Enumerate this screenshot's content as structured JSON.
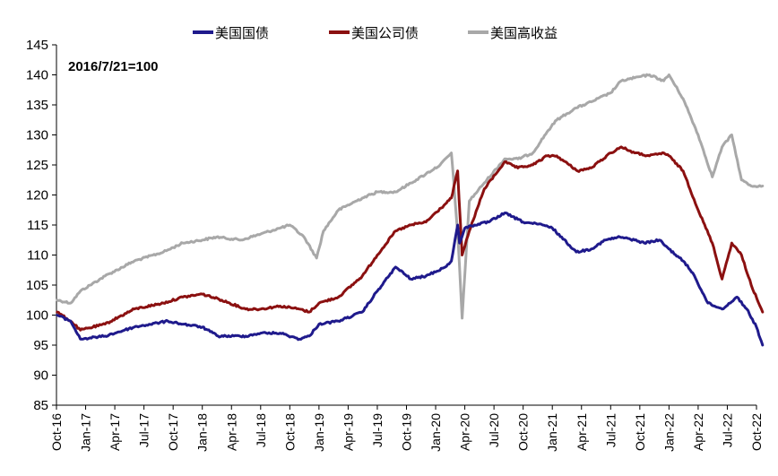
{
  "chart_data": {
    "type": "line",
    "title": "",
    "xlabel": "",
    "ylabel": "",
    "annotation": "2016/7/21=100",
    "ylim": [
      85,
      145
    ],
    "yticks": [
      85,
      90,
      95,
      100,
      105,
      110,
      115,
      120,
      125,
      130,
      135,
      140,
      145
    ],
    "xlim": [
      "2016-10",
      "2022-10"
    ],
    "x_tick_labels": [
      "Oct-16",
      "Jan-17",
      "Apr-17",
      "Jul-17",
      "Oct-17",
      "Jan-18",
      "Apr-18",
      "Jul-18",
      "Oct-18",
      "Jan-19",
      "Apr-19",
      "Jul-19",
      "Oct-19",
      "Jan-20",
      "Apr-20",
      "Jul-20",
      "Oct-20",
      "Jan-21",
      "Apr-21",
      "Jul-21",
      "Oct-21",
      "Jan-22",
      "Apr-22",
      "Jul-22",
      "Oct-22"
    ],
    "grid": false,
    "legend_position": "top",
    "series": [
      {
        "name": "美国国债",
        "color": "#1f1a8c",
        "x": [
          "2016-10-03",
          "2016-11-15",
          "2016-12-15",
          "2017-03-01",
          "2017-06-01",
          "2017-09-15",
          "2017-11-01",
          "2018-01-01",
          "2018-02-20",
          "2018-05-15",
          "2018-07-01",
          "2018-09-01",
          "2018-11-01",
          "2018-12-01",
          "2019-01-01",
          "2019-03-01",
          "2019-05-15",
          "2019-07-01",
          "2019-08-28",
          "2019-10-15",
          "2019-12-01",
          "2020-02-01",
          "2020-02-20",
          "2020-03-09",
          "2020-03-15",
          "2020-04-01",
          "2020-05-01",
          "2020-06-15",
          "2020-08-04",
          "2020-10-01",
          "2020-12-01",
          "2021-01-01",
          "2021-03-15",
          "2021-05-01",
          "2021-06-15",
          "2021-07-30",
          "2021-09-15",
          "2021-10-15",
          "2021-12-01",
          "2022-01-01",
          "2022-02-15",
          "2022-03-15",
          "2022-05-01",
          "2022-06-15",
          "2022-08-01",
          "2022-09-01",
          "2022-10-01",
          "2022-10-20"
        ],
        "values": [
          100,
          99,
          96,
          96.5,
          98,
          99,
          98.5,
          98,
          96.5,
          96.5,
          97,
          97,
          96,
          96.5,
          98.5,
          99,
          100.5,
          104,
          108,
          106,
          106.5,
          108,
          109,
          115,
          112,
          114.5,
          115,
          115.5,
          117,
          115.5,
          115,
          114.5,
          110.5,
          111,
          112.5,
          113,
          112.5,
          112,
          112.5,
          111,
          109,
          107,
          102,
          101,
          103,
          101,
          98,
          95
        ]
      },
      {
        "name": "美国公司债",
        "color": "#8b1010",
        "x": [
          "2016-10-03",
          "2016-11-15",
          "2016-12-15",
          "2017-03-01",
          "2017-06-01",
          "2017-09-01",
          "2017-11-01",
          "2018-01-01",
          "2018-03-01",
          "2018-05-15",
          "2018-07-01",
          "2018-09-01",
          "2018-11-01",
          "2018-12-01",
          "2019-01-01",
          "2019-03-01",
          "2019-05-15",
          "2019-07-01",
          "2019-08-28",
          "2019-10-15",
          "2019-12-01",
          "2020-02-01",
          "2020-02-20",
          "2020-03-09",
          "2020-03-23",
          "2020-04-15",
          "2020-06-01",
          "2020-08-04",
          "2020-09-15",
          "2020-11-01",
          "2020-12-15",
          "2021-01-15",
          "2021-03-19",
          "2021-05-01",
          "2021-07-01",
          "2021-08-04",
          "2021-09-15",
          "2021-11-01",
          "2021-12-15",
          "2022-01-01",
          "2022-02-15",
          "2022-04-01",
          "2022-05-15",
          "2022-06-15",
          "2022-07-15",
          "2022-08-15",
          "2022-09-15",
          "2022-10-20"
        ],
        "values": [
          100.5,
          99,
          97.5,
          98.5,
          101,
          102,
          103,
          103.5,
          102.5,
          101,
          101,
          101.5,
          101,
          100.5,
          102,
          103,
          106.5,
          110,
          114,
          115,
          115.5,
          118.5,
          119.5,
          124,
          110,
          114,
          121,
          125.5,
          124.5,
          125,
          126.5,
          126.5,
          124,
          124.5,
          127,
          128,
          127,
          126.5,
          127,
          126.5,
          124,
          117.5,
          112,
          106,
          112,
          110,
          105,
          100.5
        ]
      },
      {
        "name": "美国高收益",
        "color": "#a8a8a8",
        "x": [
          "2016-10-03",
          "2016-11-15",
          "2016-12-15",
          "2017-03-01",
          "2017-06-01",
          "2017-09-01",
          "2017-11-01",
          "2018-01-01",
          "2018-02-15",
          "2018-05-01",
          "2018-07-01",
          "2018-09-01",
          "2018-10-01",
          "2018-11-15",
          "2018-12-24",
          "2019-01-15",
          "2019-03-01",
          "2019-05-15",
          "2019-07-01",
          "2019-08-28",
          "2019-10-15",
          "2019-12-01",
          "2020-01-15",
          "2020-02-20",
          "2020-03-10",
          "2020-03-23",
          "2020-04-15",
          "2020-06-01",
          "2020-08-04",
          "2020-09-15",
          "2020-11-01",
          "2020-12-15",
          "2021-01-15",
          "2021-03-15",
          "2021-05-01",
          "2021-07-01",
          "2021-08-04",
          "2021-09-15",
          "2021-11-01",
          "2021-12-15",
          "2022-01-01",
          "2022-02-15",
          "2022-04-01",
          "2022-05-15",
          "2022-06-15",
          "2022-07-15",
          "2022-08-15",
          "2022-09-15",
          "2022-10-20"
        ],
        "values": [
          102.5,
          102,
          104,
          106.5,
          109,
          110.5,
          112,
          112.5,
          113,
          112.5,
          113.5,
          114.5,
          115,
          113,
          109.5,
          114,
          117.5,
          119.5,
          120.5,
          120.5,
          122,
          123.5,
          125,
          127,
          113,
          99.5,
          119,
          122,
          126,
          126,
          127,
          130.5,
          132.5,
          134.5,
          135.5,
          137,
          139,
          139.5,
          140,
          139,
          140,
          136,
          130,
          123,
          128,
          130,
          122.5,
          121.5,
          121.5
        ]
      }
    ]
  }
}
